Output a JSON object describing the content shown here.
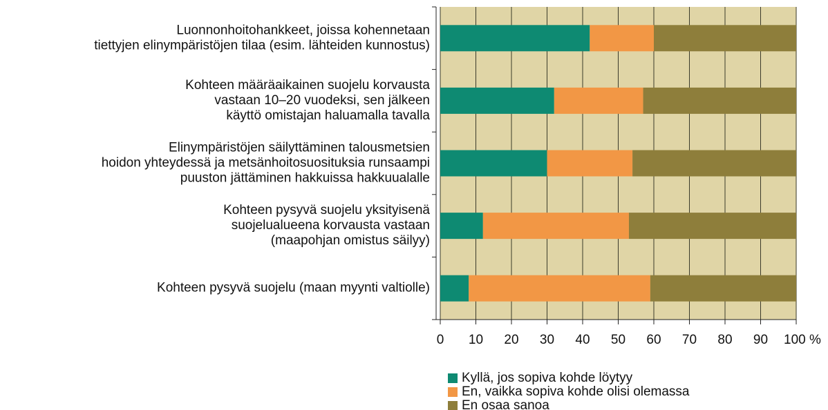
{
  "chart_data": {
    "type": "stacked_barh",
    "categories": [
      "Luonnonhoitohankkeet, joissa kohennetaan\ntiettyjen elinympäristöjen tilaa (esim. lähteiden kunnostus)",
      "Kohteen määräaikainen suojelu korvausta\nvastaan 10–20 vuodeksi, sen jälkeen\nkäyttö omistajan haluamalla tavalla",
      "Elinympäristöjen säilyttäminen talousmetsien\nhoidon yhteydessä ja metsänhoitosuosituksia runsaampi\npuuston jättäminen hakkuissa hakkuualalle",
      "Kohteen pysyvä suojelu yksityisenä\nsuojelualueena korvausta vastaan\n(maapohjan omistus säilyy)",
      "Kohteen pysyvä suojelu (maan myynti valtiolle)"
    ],
    "series": [
      {
        "name": "Kyllä, jos sopiva kohde löytyy",
        "color": "#0e8a72",
        "values": [
          42,
          32,
          30,
          12,
          8
        ]
      },
      {
        "name": "En, vaikka sopiva kohde olisi olemassa",
        "color": "#f29745",
        "values": [
          18,
          25,
          24,
          41,
          51
        ]
      },
      {
        "name": "En osaa sanoa",
        "color": "#8e7e3b",
        "values": [
          40,
          43,
          46,
          47,
          41
        ]
      }
    ],
    "xlim": [
      0,
      100
    ],
    "xticks": [
      0,
      10,
      20,
      30,
      40,
      50,
      60,
      70,
      80,
      90,
      {
        "value": 100,
        "label": "100 %"
      }
    ],
    "grid": true,
    "legend": "bottom"
  }
}
